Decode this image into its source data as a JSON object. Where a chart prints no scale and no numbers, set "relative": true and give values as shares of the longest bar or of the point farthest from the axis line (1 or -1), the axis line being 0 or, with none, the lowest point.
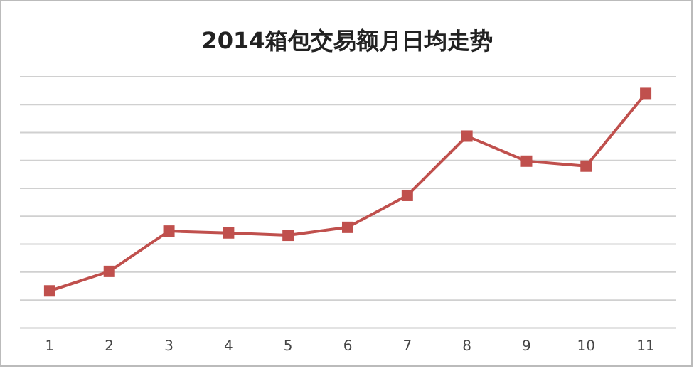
{
  "chart_data": {
    "type": "line",
    "title": "2014箱包交易额月日均走势",
    "relative": true,
    "categories": [
      "1",
      "2",
      "3",
      "4",
      "5",
      "6",
      "7",
      "8",
      "9",
      "10",
      "11"
    ],
    "series": [
      {
        "color": "#c0504d",
        "values": [
          0.158,
          0.241,
          0.413,
          0.405,
          0.395,
          0.429,
          0.565,
          0.818,
          0.711,
          0.69,
          1
        ]
      }
    ],
    "grid": "y",
    "marker": "square",
    "line_style": "solid"
  }
}
